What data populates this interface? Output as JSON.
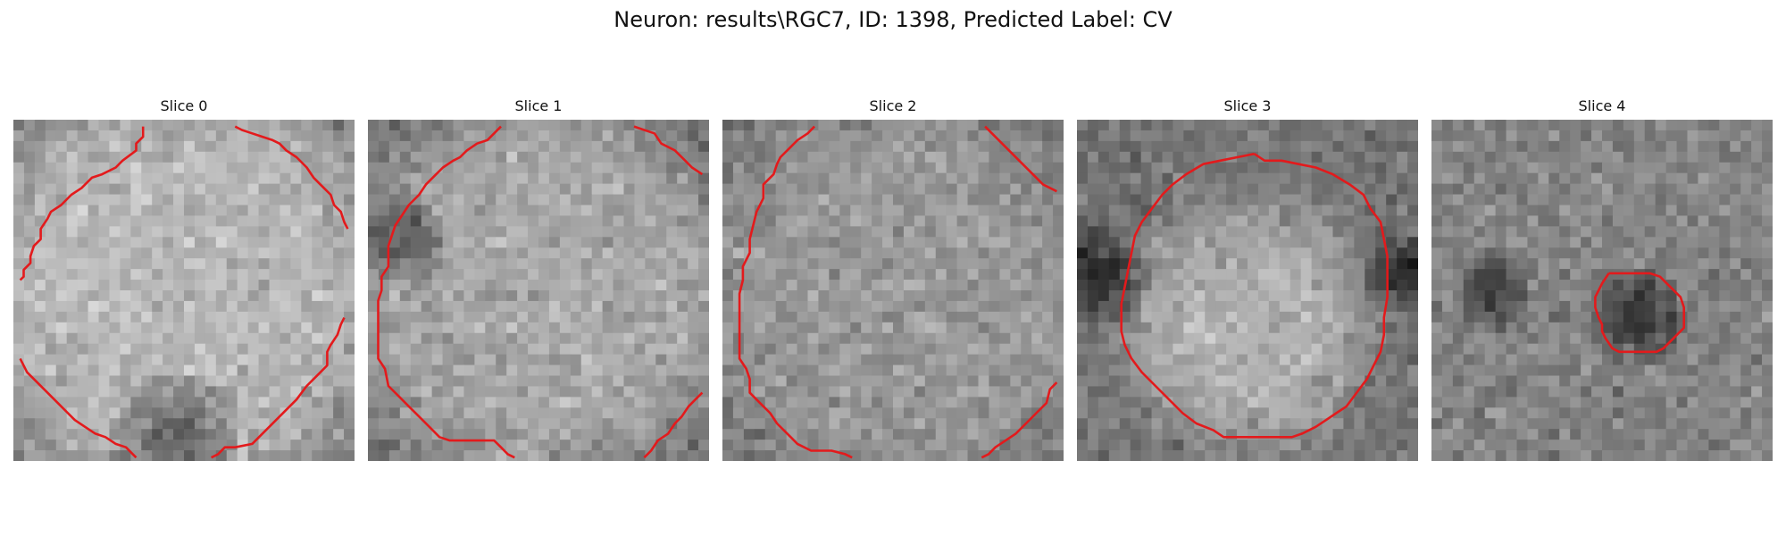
{
  "figure": {
    "title": "Neuron: results\\RGC7, ID: 1398, Predicted Label: CV"
  },
  "contour_color": "#e31a1c",
  "slices": [
    {
      "label": "Slice 0",
      "seed": 11,
      "center": [
        0.5,
        0.5
      ],
      "radius": 0.62,
      "inside_mean": 0.72,
      "outside_mean": 0.52,
      "dark_blobs": [
        [
          0.48,
          0.93,
          0.12
        ]
      ],
      "contours": [
        [
          [
            0.38,
            0.02
          ],
          [
            0.38,
            0.05
          ],
          [
            0.36,
            0.07
          ],
          [
            0.36,
            0.09
          ],
          [
            0.32,
            0.12
          ],
          [
            0.3,
            0.14
          ],
          [
            0.26,
            0.16
          ],
          [
            0.23,
            0.17
          ],
          [
            0.2,
            0.2
          ],
          [
            0.17,
            0.22
          ],
          [
            0.14,
            0.25
          ],
          [
            0.11,
            0.27
          ],
          [
            0.1,
            0.29
          ],
          [
            0.08,
            0.32
          ],
          [
            0.08,
            0.35
          ],
          [
            0.06,
            0.37
          ],
          [
            0.05,
            0.4
          ],
          [
            0.05,
            0.42
          ],
          [
            0.03,
            0.44
          ],
          [
            0.03,
            0.46
          ],
          [
            0.02,
            0.47
          ]
        ],
        [
          [
            0.65,
            0.02
          ],
          [
            0.67,
            0.03
          ],
          [
            0.7,
            0.04
          ],
          [
            0.73,
            0.05
          ],
          [
            0.76,
            0.06
          ],
          [
            0.78,
            0.07
          ],
          [
            0.8,
            0.09
          ],
          [
            0.83,
            0.11
          ],
          [
            0.86,
            0.14
          ],
          [
            0.88,
            0.17
          ],
          [
            0.9,
            0.19
          ],
          [
            0.93,
            0.22
          ],
          [
            0.94,
            0.25
          ],
          [
            0.96,
            0.27
          ],
          [
            0.97,
            0.3
          ],
          [
            0.98,
            0.32
          ]
        ],
        [
          [
            0.02,
            0.7
          ],
          [
            0.04,
            0.74
          ],
          [
            0.07,
            0.77
          ],
          [
            0.1,
            0.8
          ],
          [
            0.13,
            0.83
          ],
          [
            0.16,
            0.86
          ],
          [
            0.18,
            0.88
          ],
          [
            0.21,
            0.9
          ],
          [
            0.24,
            0.92
          ],
          [
            0.27,
            0.93
          ],
          [
            0.3,
            0.95
          ],
          [
            0.33,
            0.96
          ],
          [
            0.35,
            0.98
          ],
          [
            0.36,
            0.99
          ]
        ],
        [
          [
            0.97,
            0.58
          ],
          [
            0.96,
            0.6
          ],
          [
            0.95,
            0.63
          ],
          [
            0.93,
            0.66
          ],
          [
            0.92,
            0.68
          ],
          [
            0.92,
            0.72
          ],
          [
            0.9,
            0.74
          ],
          [
            0.88,
            0.76
          ],
          [
            0.86,
            0.78
          ],
          [
            0.83,
            0.82
          ],
          [
            0.8,
            0.85
          ],
          [
            0.78,
            0.87
          ],
          [
            0.75,
            0.9
          ],
          [
            0.72,
            0.93
          ],
          [
            0.7,
            0.95
          ],
          [
            0.65,
            0.96
          ],
          [
            0.62,
            0.96
          ],
          [
            0.6,
            0.98
          ],
          [
            0.58,
            0.99
          ]
        ]
      ]
    },
    {
      "label": "Slice 1",
      "seed": 27,
      "center": [
        0.5,
        0.5
      ],
      "radius": 0.6,
      "inside_mean": 0.66,
      "outside_mean": 0.44,
      "dark_blobs": [
        [
          0.1,
          0.35,
          0.08
        ]
      ],
      "contours": [
        [
          [
            0.39,
            0.02
          ],
          [
            0.37,
            0.04
          ],
          [
            0.35,
            0.06
          ],
          [
            0.32,
            0.07
          ],
          [
            0.29,
            0.09
          ],
          [
            0.27,
            0.11
          ],
          [
            0.25,
            0.12
          ],
          [
            0.22,
            0.14
          ],
          [
            0.2,
            0.16
          ],
          [
            0.17,
            0.19
          ],
          [
            0.15,
            0.22
          ],
          [
            0.12,
            0.25
          ],
          [
            0.1,
            0.28
          ],
          [
            0.08,
            0.31
          ],
          [
            0.07,
            0.34
          ],
          [
            0.06,
            0.37
          ],
          [
            0.06,
            0.4
          ],
          [
            0.06,
            0.43
          ],
          [
            0.04,
            0.46
          ],
          [
            0.04,
            0.5
          ],
          [
            0.03,
            0.53
          ],
          [
            0.03,
            0.57
          ],
          [
            0.03,
            0.61
          ],
          [
            0.03,
            0.65
          ],
          [
            0.03,
            0.7
          ],
          [
            0.05,
            0.73
          ],
          [
            0.06,
            0.78
          ],
          [
            0.09,
            0.81
          ],
          [
            0.12,
            0.84
          ],
          [
            0.15,
            0.87
          ],
          [
            0.18,
            0.9
          ],
          [
            0.21,
            0.93
          ],
          [
            0.24,
            0.94
          ],
          [
            0.28,
            0.94
          ],
          [
            0.33,
            0.94
          ],
          [
            0.37,
            0.94
          ],
          [
            0.39,
            0.96
          ],
          [
            0.41,
            0.98
          ],
          [
            0.43,
            0.99
          ]
        ],
        [
          [
            0.78,
            0.02
          ],
          [
            0.81,
            0.03
          ],
          [
            0.84,
            0.04
          ],
          [
            0.86,
            0.07
          ],
          [
            0.9,
            0.09
          ],
          [
            0.93,
            0.12
          ],
          [
            0.95,
            0.14
          ],
          [
            0.98,
            0.16
          ]
        ],
        [
          [
            0.98,
            0.8
          ],
          [
            0.96,
            0.82
          ],
          [
            0.94,
            0.84
          ],
          [
            0.92,
            0.87
          ],
          [
            0.9,
            0.89
          ],
          [
            0.88,
            0.92
          ],
          [
            0.85,
            0.94
          ],
          [
            0.83,
            0.97
          ],
          [
            0.81,
            0.99
          ]
        ]
      ]
    },
    {
      "label": "Slice 2",
      "seed": 43,
      "center": [
        0.5,
        0.5
      ],
      "radius": 0.6,
      "inside_mean": 0.6,
      "outside_mean": 0.46,
      "dark_blobs": [],
      "contours": [
        [
          [
            0.27,
            0.02
          ],
          [
            0.25,
            0.04
          ],
          [
            0.22,
            0.06
          ],
          [
            0.2,
            0.08
          ],
          [
            0.17,
            0.11
          ],
          [
            0.16,
            0.13
          ],
          [
            0.15,
            0.16
          ],
          [
            0.12,
            0.19
          ],
          [
            0.12,
            0.23
          ],
          [
            0.1,
            0.27
          ],
          [
            0.09,
            0.31
          ],
          [
            0.08,
            0.35
          ],
          [
            0.08,
            0.39
          ],
          [
            0.06,
            0.43
          ],
          [
            0.06,
            0.47
          ],
          [
            0.05,
            0.51
          ],
          [
            0.05,
            0.56
          ],
          [
            0.05,
            0.6
          ],
          [
            0.05,
            0.65
          ],
          [
            0.05,
            0.7
          ],
          [
            0.07,
            0.73
          ],
          [
            0.08,
            0.76
          ],
          [
            0.08,
            0.8
          ],
          [
            0.11,
            0.83
          ],
          [
            0.14,
            0.86
          ],
          [
            0.16,
            0.89
          ],
          [
            0.19,
            0.92
          ],
          [
            0.22,
            0.95
          ],
          [
            0.26,
            0.97
          ],
          [
            0.32,
            0.97
          ],
          [
            0.36,
            0.98
          ],
          [
            0.38,
            0.99
          ]
        ],
        [
          [
            0.77,
            0.02
          ],
          [
            0.79,
            0.04
          ],
          [
            0.82,
            0.07
          ],
          [
            0.85,
            0.1
          ],
          [
            0.88,
            0.13
          ],
          [
            0.91,
            0.16
          ],
          [
            0.94,
            0.19
          ],
          [
            0.98,
            0.21
          ]
        ],
        [
          [
            0.98,
            0.77
          ],
          [
            0.96,
            0.79
          ],
          [
            0.95,
            0.83
          ],
          [
            0.92,
            0.86
          ],
          [
            0.89,
            0.89
          ],
          [
            0.86,
            0.92
          ],
          [
            0.83,
            0.94
          ],
          [
            0.8,
            0.96
          ],
          [
            0.78,
            0.98
          ],
          [
            0.76,
            0.99
          ]
        ]
      ]
    },
    {
      "label": "Slice 3",
      "seed": 61,
      "center": [
        0.5,
        0.6
      ],
      "radius": 0.38,
      "inside_mean": 0.7,
      "outside_mean": 0.45,
      "dark_blobs": [
        [
          0.05,
          0.45,
          0.1
        ],
        [
          0.95,
          0.45,
          0.07
        ]
      ],
      "contours": [
        [
          [
            0.52,
            0.1
          ],
          [
            0.55,
            0.12
          ],
          [
            0.6,
            0.12
          ],
          [
            0.65,
            0.13
          ],
          [
            0.7,
            0.14
          ],
          [
            0.75,
            0.16
          ],
          [
            0.8,
            0.19
          ],
          [
            0.84,
            0.22
          ],
          [
            0.86,
            0.26
          ],
          [
            0.89,
            0.3
          ],
          [
            0.9,
            0.35
          ],
          [
            0.91,
            0.4
          ],
          [
            0.91,
            0.46
          ],
          [
            0.91,
            0.52
          ],
          [
            0.9,
            0.58
          ],
          [
            0.9,
            0.63
          ],
          [
            0.89,
            0.68
          ],
          [
            0.87,
            0.72
          ],
          [
            0.85,
            0.76
          ],
          [
            0.82,
            0.8
          ],
          [
            0.79,
            0.84
          ],
          [
            0.76,
            0.86
          ],
          [
            0.73,
            0.88
          ],
          [
            0.7,
            0.9
          ],
          [
            0.66,
            0.92
          ],
          [
            0.63,
            0.93
          ],
          [
            0.6,
            0.93
          ],
          [
            0.55,
            0.93
          ],
          [
            0.5,
            0.93
          ],
          [
            0.45,
            0.93
          ],
          [
            0.43,
            0.93
          ],
          [
            0.4,
            0.91
          ],
          [
            0.35,
            0.89
          ],
          [
            0.31,
            0.86
          ],
          [
            0.27,
            0.82
          ],
          [
            0.23,
            0.78
          ],
          [
            0.19,
            0.74
          ],
          [
            0.16,
            0.7
          ],
          [
            0.14,
            0.66
          ],
          [
            0.13,
            0.62
          ],
          [
            0.13,
            0.58
          ],
          [
            0.13,
            0.54
          ],
          [
            0.14,
            0.49
          ],
          [
            0.15,
            0.44
          ],
          [
            0.16,
            0.39
          ],
          [
            0.17,
            0.34
          ],
          [
            0.19,
            0.3
          ],
          [
            0.22,
            0.26
          ],
          [
            0.25,
            0.22
          ],
          [
            0.28,
            0.19
          ],
          [
            0.32,
            0.16
          ],
          [
            0.37,
            0.13
          ],
          [
            0.42,
            0.12
          ],
          [
            0.47,
            0.11
          ],
          [
            0.52,
            0.1
          ]
        ]
      ]
    },
    {
      "label": "Slice 4",
      "seed": 79,
      "center": [
        0.5,
        0.5
      ],
      "radius": 0.0,
      "inside_mean": 0.52,
      "outside_mean": 0.52,
      "dark_blobs": [
        [
          0.6,
          0.58,
          0.09
        ],
        [
          0.18,
          0.5,
          0.07
        ]
      ],
      "contours": [
        [
          [
            0.52,
            0.45
          ],
          [
            0.55,
            0.45
          ],
          [
            0.6,
            0.45
          ],
          [
            0.64,
            0.45
          ],
          [
            0.67,
            0.46
          ],
          [
            0.7,
            0.49
          ],
          [
            0.73,
            0.52
          ],
          [
            0.74,
            0.55
          ],
          [
            0.74,
            0.58
          ],
          [
            0.74,
            0.61
          ],
          [
            0.72,
            0.63
          ],
          [
            0.7,
            0.65
          ],
          [
            0.68,
            0.67
          ],
          [
            0.66,
            0.68
          ],
          [
            0.63,
            0.68
          ],
          [
            0.59,
            0.68
          ],
          [
            0.55,
            0.68
          ],
          [
            0.53,
            0.67
          ],
          [
            0.51,
            0.64
          ],
          [
            0.5,
            0.62
          ],
          [
            0.5,
            0.6
          ],
          [
            0.49,
            0.58
          ],
          [
            0.48,
            0.55
          ],
          [
            0.48,
            0.52
          ],
          [
            0.49,
            0.5
          ],
          [
            0.5,
            0.48
          ],
          [
            0.52,
            0.45
          ]
        ]
      ]
    }
  ]
}
